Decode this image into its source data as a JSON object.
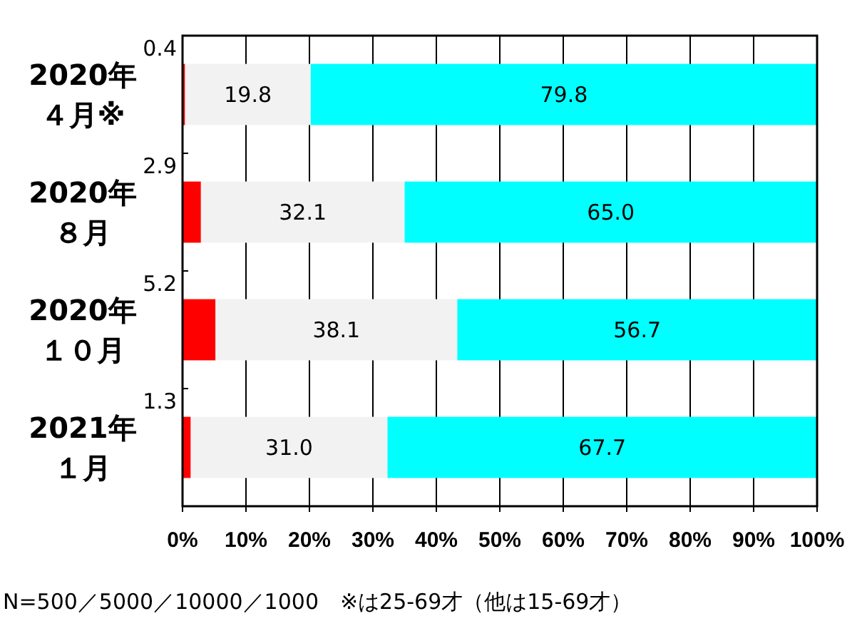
{
  "chart_data": {
    "type": "bar",
    "orientation": "horizontal",
    "stacked": true,
    "grid": "x",
    "categories": [
      "2020年４月※",
      "2020年８月",
      "2020年１０月",
      "2021年１月"
    ],
    "series": [
      {
        "color": "#ff0000",
        "values": [
          0.4,
          2.9,
          5.2,
          1.3
        ],
        "value_labels": [
          "0.4",
          "2.9",
          "5.2",
          "1.3"
        ]
      },
      {
        "color": "#f2f2f2",
        "values": [
          19.8,
          32.1,
          38.1,
          31.0
        ],
        "value_labels": [
          "19.8",
          "32.1",
          "38.1",
          "31.0"
        ]
      },
      {
        "color": "#00ffff",
        "values": [
          79.8,
          65.0,
          56.7,
          67.7
        ],
        "value_labels": [
          "79.8",
          "65.0",
          "56.7",
          "67.7"
        ]
      }
    ],
    "xlim": [
      0,
      100
    ],
    "xticks": [
      {
        "value": 0,
        "label": "0%"
      },
      {
        "value": 10,
        "label": "10%"
      },
      {
        "value": 20,
        "label": "20%"
      },
      {
        "value": 30,
        "label": "30%"
      },
      {
        "value": 40,
        "label": "40%"
      },
      {
        "value": 50,
        "label": "50%"
      },
      {
        "value": 60,
        "label": "60%"
      },
      {
        "value": 70,
        "label": "70%"
      },
      {
        "value": 80,
        "label": "80%"
      },
      {
        "value": 90,
        "label": "90%"
      },
      {
        "value": 100,
        "label": "100%"
      }
    ],
    "annotations": [
      "N=500／5000／10000／1000　※は25-69才（他は15-69才）"
    ]
  }
}
